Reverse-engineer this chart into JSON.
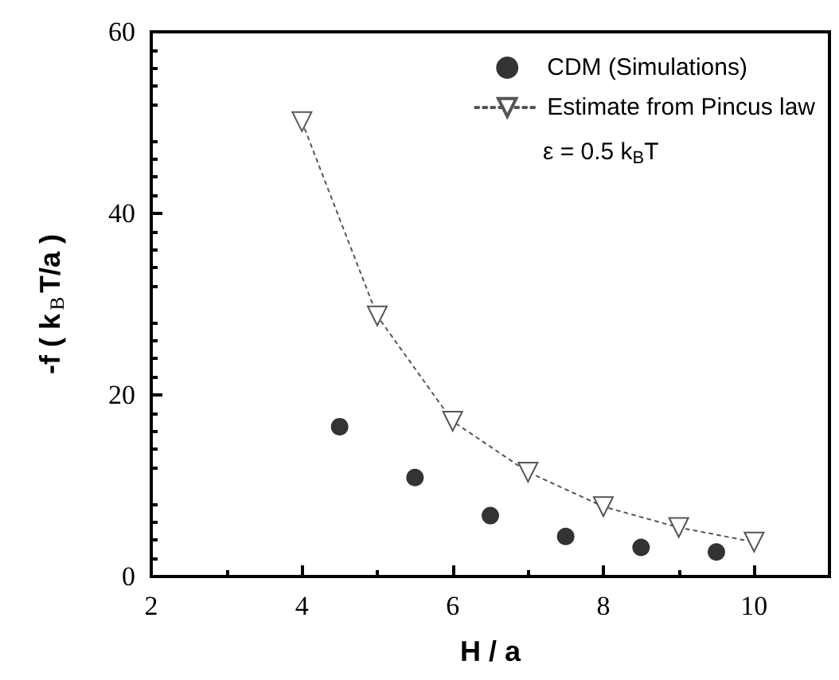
{
  "chart_data": {
    "type": "scatter",
    "xlabel": "H / a",
    "ylabel": "-f ( k$_{B}$T/a )",
    "xlim": [
      2,
      11
    ],
    "xticks": [
      2,
      4,
      6,
      8,
      10
    ],
    "ylim": [
      0,
      60
    ],
    "yticks": [
      0,
      20,
      40,
      60
    ],
    "grid": false,
    "legend": "top right",
    "annotations": [
      "ε = 0.5 k$_{B}$T"
    ],
    "series": [
      {
        "name": "CDM (Simulations)",
        "color": "#000000",
        "marker": "circle",
        "x": [
          4.5,
          5.5,
          6.5,
          7.5,
          8.5,
          9.5
        ],
        "values": [
          16.5,
          10.9,
          6.7,
          4.4,
          3.2,
          2.7
        ]
      },
      {
        "name": "Estimate from Pincus law",
        "type": "line",
        "color": "#555555",
        "marker": "triangle",
        "line_style": "dotted",
        "x": [
          4,
          5,
          6,
          7,
          8,
          9,
          10
        ],
        "values": [
          50.1,
          28.7,
          17.1,
          11.5,
          7.7,
          5.4,
          3.8
        ]
      }
    ]
  }
}
